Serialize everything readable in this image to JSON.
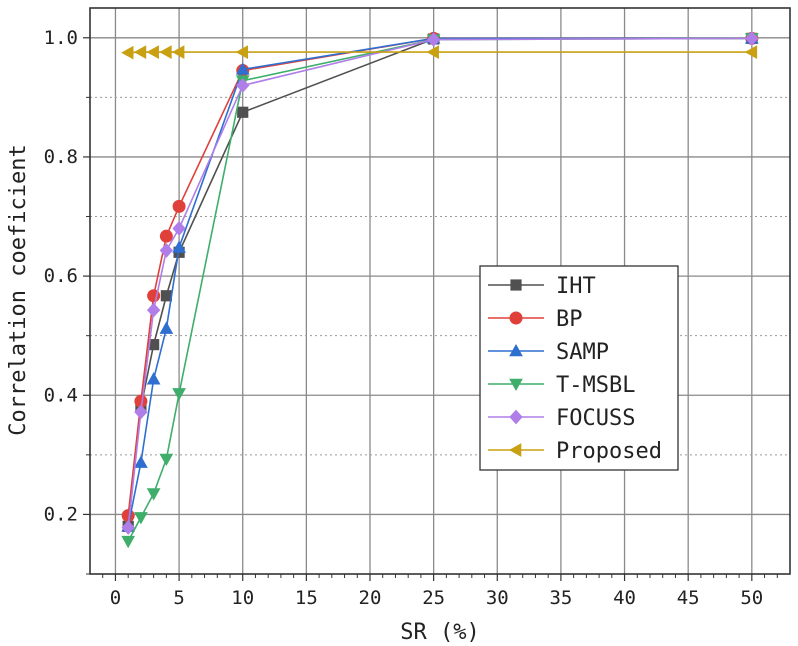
{
  "chart_data": {
    "type": "line",
    "xlabel": "SR (%)",
    "ylabel": "Correlation coeficient",
    "xlim": [
      -2,
      53
    ],
    "ylim": [
      0.1,
      1.05
    ],
    "x_ticks": [
      0,
      5,
      10,
      15,
      20,
      25,
      30,
      35,
      40,
      45,
      50
    ],
    "y_ticks": [
      0.2,
      0.4,
      0.6,
      0.8,
      1.0
    ],
    "y_tick_labels": [
      "0.2",
      "0.4",
      "0.6",
      "0.8",
      "1.0"
    ],
    "grid": true,
    "legend_position": "right",
    "x": [
      1,
      2,
      3,
      4,
      5,
      10,
      25,
      50
    ],
    "series": [
      {
        "name": "IHT",
        "color": "#505050",
        "marker": "square",
        "values": [
          0.18,
          0.38,
          0.485,
          0.567,
          0.64,
          0.875,
          0.998,
          0.999
        ]
      },
      {
        "name": "BP",
        "color": "#e0403a",
        "marker": "circle",
        "values": [
          0.198,
          0.39,
          0.567,
          0.667,
          0.717,
          0.945,
          0.999,
          0.999
        ]
      },
      {
        "name": "SAMP",
        "color": "#2f6fd0",
        "marker": "triangle-up",
        "values": [
          0.18,
          0.287,
          0.427,
          0.512,
          0.648,
          0.947,
          0.999,
          0.999
        ]
      },
      {
        "name": "T-MSBL",
        "color": "#3fae6b",
        "marker": "triangle-down",
        "values": [
          0.155,
          0.195,
          0.235,
          0.293,
          0.403,
          0.928,
          0.997,
          0.999
        ]
      },
      {
        "name": "FOCUSS",
        "color": "#b07ee8",
        "marker": "diamond",
        "values": [
          0.178,
          0.372,
          0.543,
          0.643,
          0.68,
          0.92,
          0.997,
          0.999
        ]
      },
      {
        "name": "Proposed",
        "color": "#c8a012",
        "marker": "triangle-left",
        "values": [
          0.975,
          0.976,
          0.976,
          0.976,
          0.976,
          0.976,
          0.976,
          0.976
        ]
      }
    ]
  }
}
